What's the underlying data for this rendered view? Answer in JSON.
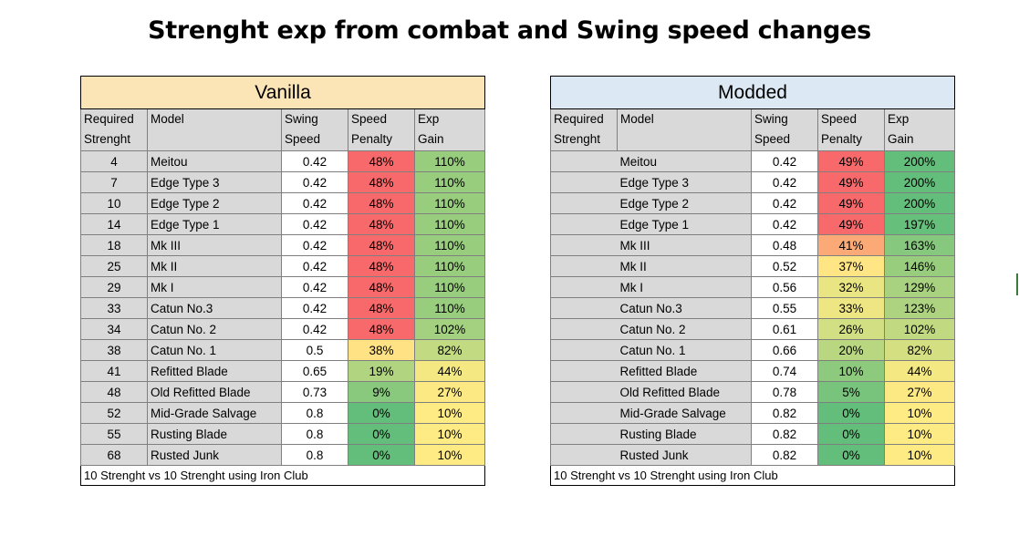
{
  "title": "Strenght exp from combat and Swing speed changes",
  "colors": {
    "red": "#f8696b",
    "orange": "#fbaa77",
    "yellow": "#ffeb84",
    "yellow_green": "#e5e483",
    "light_green": "#bcd881",
    "green": "#98cd7e",
    "dark_green": "#63be7b"
  },
  "vanilla": {
    "heading": "Vanilla",
    "columns": [
      [
        "Required",
        "Strenght"
      ],
      [
        "Model",
        ""
      ],
      [
        "Swing",
        "Speed"
      ],
      [
        "Speed",
        "Penalty"
      ],
      [
        "Exp",
        "Gain"
      ]
    ],
    "rows": [
      {
        "req": "4",
        "model": "Meitou",
        "speed": "0.42",
        "penalty": "48%",
        "gain": "110%",
        "pc": "#f8696b",
        "gc": "#98cd7e"
      },
      {
        "req": "7",
        "model": "Edge Type 3",
        "speed": "0.42",
        "penalty": "48%",
        "gain": "110%",
        "pc": "#f8696b",
        "gc": "#98cd7e"
      },
      {
        "req": "10",
        "model": "Edge Type 2",
        "speed": "0.42",
        "penalty": "48%",
        "gain": "110%",
        "pc": "#f8696b",
        "gc": "#98cd7e"
      },
      {
        "req": "14",
        "model": "Edge Type 1",
        "speed": "0.42",
        "penalty": "48%",
        "gain": "110%",
        "pc": "#f8696b",
        "gc": "#98cd7e"
      },
      {
        "req": "18",
        "model": "Mk III",
        "speed": "0.42",
        "penalty": "48%",
        "gain": "110%",
        "pc": "#f8696b",
        "gc": "#98cd7e"
      },
      {
        "req": "25",
        "model": "Mk II",
        "speed": "0.42",
        "penalty": "48%",
        "gain": "110%",
        "pc": "#f8696b",
        "gc": "#98cd7e"
      },
      {
        "req": "29",
        "model": "Mk I",
        "speed": "0.42",
        "penalty": "48%",
        "gain": "110%",
        "pc": "#f8696b",
        "gc": "#98cd7e"
      },
      {
        "req": "33",
        "model": "Catun No.3",
        "speed": "0.42",
        "penalty": "48%",
        "gain": "110%",
        "pc": "#f8696b",
        "gc": "#98cd7e"
      },
      {
        "req": "34",
        "model": "Catun No. 2",
        "speed": "0.42",
        "penalty": "48%",
        "gain": "102%",
        "pc": "#f8696b",
        "gc": "#a4d17f"
      },
      {
        "req": "38",
        "model": "Catun No. 1",
        "speed": "0.5",
        "penalty": "38%",
        "gain": "82%",
        "pc": "#ffe283",
        "gc": "#c2da81"
      },
      {
        "req": "41",
        "model": "Refitted Blade",
        "speed": "0.65",
        "penalty": "19%",
        "gain": "44%",
        "pc": "#b0d480",
        "gc": "#f4e883"
      },
      {
        "req": "48",
        "model": "Old Refitted Blade",
        "speed": "0.73",
        "penalty": "9%",
        "gain": "27%",
        "pc": "#88c97d",
        "gc": "#fde984"
      },
      {
        "req": "52",
        "model": "Mid-Grade Salvage",
        "speed": "0.8",
        "penalty": "0%",
        "gain": "10%",
        "pc": "#63be7b",
        "gc": "#ffeb84"
      },
      {
        "req": "55",
        "model": "Rusting Blade",
        "speed": "0.8",
        "penalty": "0%",
        "gain": "10%",
        "pc": "#63be7b",
        "gc": "#ffeb84"
      },
      {
        "req": "68",
        "model": "Rusted Junk",
        "speed": "0.8",
        "penalty": "0%",
        "gain": "10%",
        "pc": "#63be7b",
        "gc": "#ffeb84"
      }
    ],
    "footer": "10 Strenght vs 10 Strenght using Iron Club"
  },
  "modded": {
    "heading": "Modded",
    "columns": [
      [
        "Required",
        "Strenght"
      ],
      [
        "Model",
        ""
      ],
      [
        "Swing",
        "Speed"
      ],
      [
        "Speed",
        "Penalty"
      ],
      [
        "Exp",
        "Gain"
      ]
    ],
    "rows": [
      {
        "model": "Meitou",
        "speed": "0.42",
        "penalty": "49%",
        "gain": "200%",
        "pc": "#f8696b",
        "gc": "#63be7b"
      },
      {
        "model": "Edge Type 3",
        "speed": "0.42",
        "penalty": "49%",
        "gain": "200%",
        "pc": "#f8696b",
        "gc": "#63be7b"
      },
      {
        "model": "Edge Type 2",
        "speed": "0.42",
        "penalty": "49%",
        "gain": "200%",
        "pc": "#f8696b",
        "gc": "#63be7b"
      },
      {
        "model": "Edge Type 1",
        "speed": "0.42",
        "penalty": "49%",
        "gain": "197%",
        "pc": "#f8696b",
        "gc": "#66bf7b"
      },
      {
        "model": "Mk III",
        "speed": "0.48",
        "penalty": "41%",
        "gain": "163%",
        "pc": "#fbaa77",
        "gc": "#86c87d"
      },
      {
        "model": "Mk II",
        "speed": "0.52",
        "penalty": "37%",
        "gain": "146%",
        "pc": "#ffe584",
        "gc": "#98cd7e"
      },
      {
        "model": "Mk I",
        "speed": "0.56",
        "penalty": "32%",
        "gain": "129%",
        "pc": "#e9e583",
        "gc": "#a8d27f"
      },
      {
        "model": "Catun No.3",
        "speed": "0.55",
        "penalty": "33%",
        "gain": "123%",
        "pc": "#eee683",
        "gc": "#aed380"
      },
      {
        "model": "Catun No. 2",
        "speed": "0.61",
        "penalty": "26%",
        "gain": "102%",
        "pc": "#d2df82",
        "gc": "#c1da81"
      },
      {
        "model": "Catun No. 1",
        "speed": "0.66",
        "penalty": "20%",
        "gain": "82%",
        "pc": "#b8d780",
        "gc": "#d4df82"
      },
      {
        "model": "Refitted Blade",
        "speed": "0.74",
        "penalty": "10%",
        "gain": "44%",
        "pc": "#8dca7d",
        "gc": "#f4e883"
      },
      {
        "model": "Old Refitted Blade",
        "speed": "0.78",
        "penalty": "5%",
        "gain": "27%",
        "pc": "#78c47c",
        "gc": "#fde984"
      },
      {
        "model": "Mid-Grade Salvage",
        "speed": "0.82",
        "penalty": "0%",
        "gain": "10%",
        "pc": "#63be7b",
        "gc": "#ffeb84"
      },
      {
        "model": "Rusting Blade",
        "speed": "0.82",
        "penalty": "0%",
        "gain": "10%",
        "pc": "#63be7b",
        "gc": "#ffeb84"
      },
      {
        "model": "Rusted Junk",
        "speed": "0.82",
        "penalty": "0%",
        "gain": "10%",
        "pc": "#63be7b",
        "gc": "#ffeb84"
      }
    ],
    "footer": "10 Strenght vs 10 Strenght using Iron Club"
  }
}
